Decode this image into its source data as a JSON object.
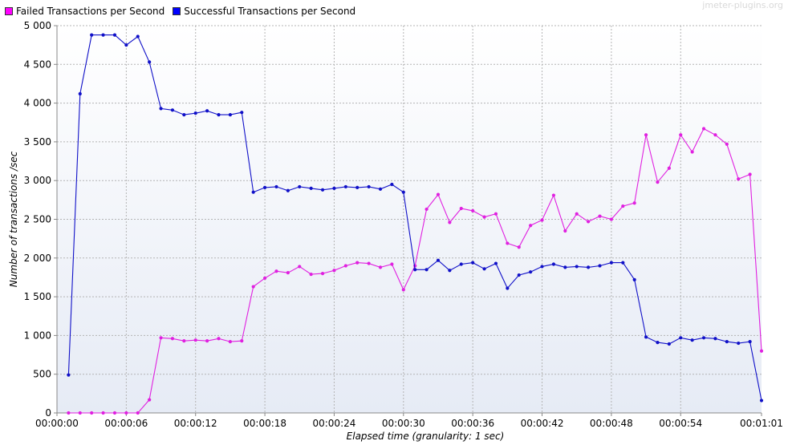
{
  "watermark": "jmeter-plugins.org",
  "colors": {
    "failed": "#ff00ff",
    "successful": "#0000ff",
    "failed_line": "#e020e0",
    "successful_line": "#1010c8"
  },
  "chart_data": {
    "type": "line",
    "xlabel": "Elapsed time (granularity: 1 sec)",
    "ylabel": "Number of transactions /sec",
    "xlim": [
      0,
      61
    ],
    "ylim": [
      0,
      5000
    ],
    "grid": true,
    "legend_position": "top-left",
    "x_ticks": [
      {
        "value": 0,
        "label": "00:00:00"
      },
      {
        "value": 6,
        "label": "00:00:06"
      },
      {
        "value": 12,
        "label": "00:00:12"
      },
      {
        "value": 18,
        "label": "00:00:18"
      },
      {
        "value": 24,
        "label": "00:00:24"
      },
      {
        "value": 30,
        "label": "00:00:30"
      },
      {
        "value": 36,
        "label": "00:00:36"
      },
      {
        "value": 42,
        "label": "00:00:42"
      },
      {
        "value": 48,
        "label": "00:00:48"
      },
      {
        "value": 54,
        "label": "00:00:54"
      },
      {
        "value": 61,
        "label": "00:01:01"
      }
    ],
    "y_ticks": [
      {
        "value": 0,
        "label": "0"
      },
      {
        "value": 500,
        "label": "500"
      },
      {
        "value": 1000,
        "label": "1 000"
      },
      {
        "value": 1500,
        "label": "1 500"
      },
      {
        "value": 2000,
        "label": "2 000"
      },
      {
        "value": 2500,
        "label": "2 500"
      },
      {
        "value": 3000,
        "label": "3 000"
      },
      {
        "value": 3500,
        "label": "3 500"
      },
      {
        "value": 4000,
        "label": "4 000"
      },
      {
        "value": 4500,
        "label": "4 500"
      },
      {
        "value": 5000,
        "label": "5 000"
      }
    ],
    "series": [
      {
        "name": "Failed Transactions per Second",
        "color_key": "failed",
        "x": [
          1,
          2,
          3,
          4,
          5,
          6,
          7,
          8,
          9,
          10,
          11,
          12,
          13,
          14,
          15,
          16,
          17,
          18,
          19,
          20,
          21,
          22,
          23,
          24,
          25,
          26,
          27,
          28,
          29,
          30,
          31,
          32,
          33,
          34,
          35,
          36,
          37,
          38,
          39,
          40,
          41,
          42,
          43,
          44,
          45,
          46,
          47,
          48,
          49,
          50,
          51,
          52,
          53,
          54,
          55,
          56,
          57,
          58,
          59,
          60,
          61
        ],
        "values": [
          0,
          0,
          0,
          0,
          0,
          0,
          0,
          170,
          970,
          960,
          930,
          940,
          930,
          960,
          920,
          930,
          1630,
          1740,
          1830,
          1810,
          1890,
          1790,
          1800,
          1840,
          1900,
          1940,
          1930,
          1880,
          1920,
          1590,
          1900,
          2630,
          2820,
          2460,
          2640,
          2610,
          2530,
          2570,
          2190,
          2140,
          2420,
          2490,
          2810,
          2350,
          2570,
          2470,
          2540,
          2500,
          2670,
          2710,
          3590,
          2980,
          3160,
          3590,
          3370,
          3670,
          3590,
          3470,
          3020,
          3080,
          800
        ]
      },
      {
        "name": "Successful Transactions per Second",
        "color_key": "successful",
        "x": [
          1,
          2,
          3,
          4,
          5,
          6,
          7,
          8,
          9,
          10,
          11,
          12,
          13,
          14,
          15,
          16,
          17,
          18,
          19,
          20,
          21,
          22,
          23,
          24,
          25,
          26,
          27,
          28,
          29,
          30,
          31,
          32,
          33,
          34,
          35,
          36,
          37,
          38,
          39,
          40,
          41,
          42,
          43,
          44,
          45,
          46,
          47,
          48,
          49,
          50,
          51,
          52,
          53,
          54,
          55,
          56,
          57,
          58,
          59,
          60,
          61
        ],
        "values": [
          490,
          4120,
          4880,
          4880,
          4880,
          4750,
          4860,
          4530,
          3930,
          3910,
          3850,
          3870,
          3900,
          3850,
          3850,
          3880,
          2850,
          2910,
          2920,
          2870,
          2920,
          2900,
          2880,
          2900,
          2920,
          2910,
          2920,
          2890,
          2950,
          2850,
          1850,
          1850,
          1970,
          1840,
          1920,
          1940,
          1860,
          1930,
          1610,
          1780,
          1820,
          1890,
          1920,
          1880,
          1890,
          1880,
          1900,
          1940,
          1940,
          1720,
          980,
          910,
          890,
          970,
          940,
          970,
          960,
          920,
          900,
          920,
          160
        ]
      }
    ]
  }
}
